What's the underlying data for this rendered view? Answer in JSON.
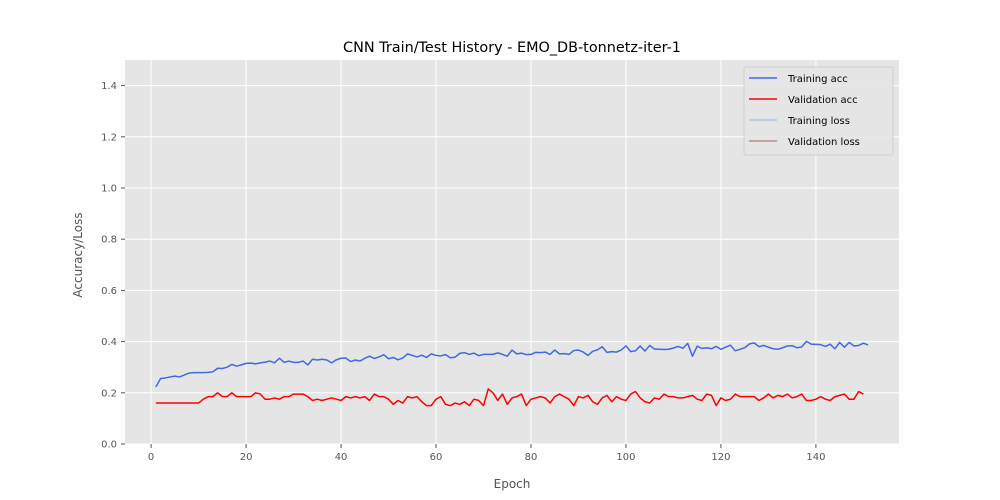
{
  "chart_data": {
    "type": "line",
    "title": "CNN Train/Test History -  EMO_DB-tonnetz-iter-1",
    "xlabel": "Epoch",
    "ylabel": "Accuracy/Loss",
    "xlim": [
      -5.5,
      157.5
    ],
    "ylim": [
      0.0,
      1.5
    ],
    "x_ticks": [
      "0",
      "20",
      "40",
      "60",
      "80",
      "100",
      "120",
      "140"
    ],
    "y_ticks": [
      "0.0",
      "0.2",
      "0.4",
      "0.6",
      "0.8",
      "1.0",
      "1.2",
      "1.4"
    ],
    "grid": true,
    "legend_position": "top-right",
    "background": "#e5e5e5",
    "grid_color": "#ffffff",
    "x_start": 1,
    "series": [
      {
        "name": "Training acc",
        "color": "#4169e1",
        "values": [
          0.223,
          0.256,
          0.258,
          0.262,
          0.265,
          0.262,
          0.27,
          0.277,
          0.279,
          0.279,
          0.279,
          0.28,
          0.282,
          0.296,
          0.295,
          0.3,
          0.311,
          0.304,
          0.309,
          0.315,
          0.316,
          0.313,
          0.317,
          0.32,
          0.324,
          0.317,
          0.335,
          0.319,
          0.324,
          0.319,
          0.319,
          0.324,
          0.309,
          0.331,
          0.328,
          0.331,
          0.328,
          0.317,
          0.329,
          0.335,
          0.336,
          0.322,
          0.328,
          0.324,
          0.335,
          0.343,
          0.334,
          0.34,
          0.349,
          0.333,
          0.338,
          0.329,
          0.336,
          0.352,
          0.346,
          0.34,
          0.347,
          0.338,
          0.352,
          0.346,
          0.344,
          0.349,
          0.337,
          0.339,
          0.354,
          0.357,
          0.35,
          0.355,
          0.345,
          0.35,
          0.35,
          0.35,
          0.356,
          0.35,
          0.343,
          0.367,
          0.352,
          0.355,
          0.349,
          0.35,
          0.358,
          0.357,
          0.359,
          0.35,
          0.367,
          0.352,
          0.353,
          0.35,
          0.365,
          0.367,
          0.359,
          0.346,
          0.362,
          0.368,
          0.38,
          0.358,
          0.361,
          0.359,
          0.367,
          0.383,
          0.361,
          0.364,
          0.383,
          0.363,
          0.385,
          0.371,
          0.37,
          0.369,
          0.37,
          0.375,
          0.381,
          0.374,
          0.393,
          0.343,
          0.382,
          0.373,
          0.376,
          0.372,
          0.381,
          0.37,
          0.378,
          0.386,
          0.364,
          0.37,
          0.376,
          0.391,
          0.395,
          0.38,
          0.385,
          0.378,
          0.372,
          0.37,
          0.376,
          0.383,
          0.384,
          0.376,
          0.379,
          0.401,
          0.39,
          0.389,
          0.388,
          0.381,
          0.39,
          0.372,
          0.397,
          0.378,
          0.397,
          0.383,
          0.385,
          0.394,
          0.387
        ]
      },
      {
        "name": "Validation acc",
        "color": "#ff0000",
        "values": [
          0.16,
          0.16,
          0.16,
          0.16,
          0.16,
          0.16,
          0.16,
          0.16,
          0.16,
          0.16,
          0.175,
          0.185,
          0.185,
          0.2,
          0.185,
          0.185,
          0.2,
          0.185,
          0.185,
          0.185,
          0.185,
          0.2,
          0.195,
          0.175,
          0.175,
          0.18,
          0.175,
          0.185,
          0.185,
          0.195,
          0.195,
          0.195,
          0.185,
          0.17,
          0.175,
          0.17,
          0.175,
          0.18,
          0.175,
          0.17,
          0.185,
          0.18,
          0.185,
          0.18,
          0.185,
          0.17,
          0.195,
          0.185,
          0.185,
          0.175,
          0.155,
          0.17,
          0.16,
          0.185,
          0.18,
          0.185,
          0.165,
          0.15,
          0.15,
          0.175,
          0.185,
          0.155,
          0.15,
          0.16,
          0.155,
          0.165,
          0.15,
          0.175,
          0.17,
          0.15,
          0.215,
          0.2,
          0.17,
          0.195,
          0.155,
          0.18,
          0.185,
          0.195,
          0.15,
          0.175,
          0.18,
          0.185,
          0.18,
          0.16,
          0.185,
          0.195,
          0.185,
          0.175,
          0.15,
          0.185,
          0.18,
          0.19,
          0.165,
          0.155,
          0.18,
          0.19,
          0.165,
          0.185,
          0.175,
          0.17,
          0.195,
          0.205,
          0.18,
          0.165,
          0.16,
          0.18,
          0.175,
          0.195,
          0.185,
          0.185,
          0.18,
          0.18,
          0.185,
          0.19,
          0.175,
          0.17,
          0.195,
          0.19,
          0.15,
          0.18,
          0.17,
          0.175,
          0.195,
          0.185,
          0.185,
          0.185,
          0.185,
          0.17,
          0.18,
          0.195,
          0.18,
          0.19,
          0.185,
          0.195,
          0.18,
          0.185,
          0.195,
          0.17,
          0.17,
          0.175,
          0.185,
          0.175,
          0.17,
          0.185,
          0.19,
          0.195,
          0.175,
          0.175,
          0.205,
          0.195
        ]
      },
      {
        "name": "Training loss",
        "color": "#aec7e8",
        "values": []
      },
      {
        "name": "Validation loss",
        "color": "#bc8f8f",
        "values": []
      }
    ]
  }
}
